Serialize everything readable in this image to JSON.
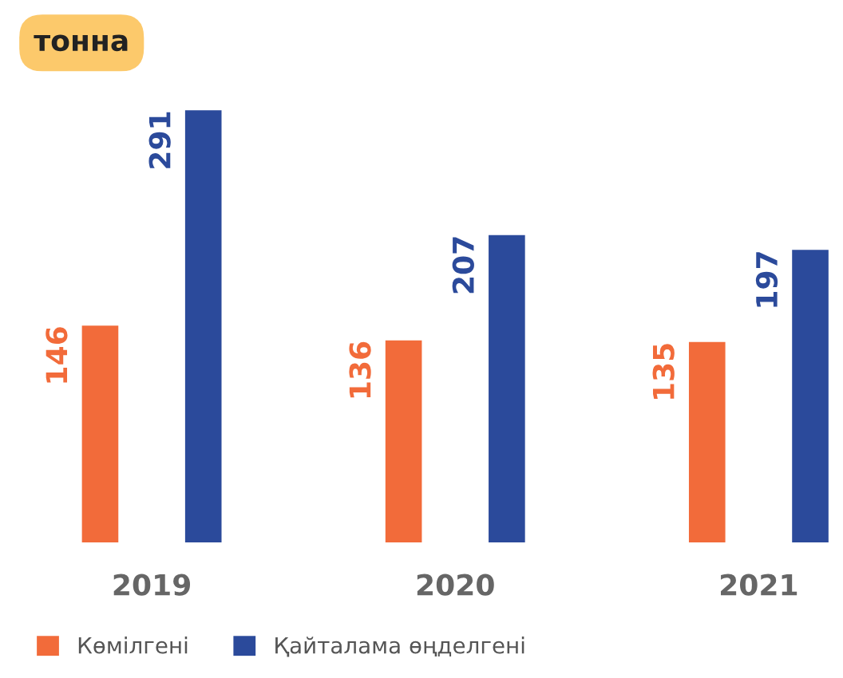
{
  "chart_data": {
    "type": "bar",
    "title": "тонна",
    "categories": [
      "2019",
      "2020",
      "2021"
    ],
    "series": [
      {
        "name": "Көмілгені",
        "color": "#f26b3a",
        "values": [
          146,
          136,
          135
        ]
      },
      {
        "name": "Қайталама өңделгені",
        "color": "#2b4a9b",
        "values": [
          291,
          207,
          197
        ]
      }
    ],
    "data_labels": true,
    "legend": "bottom left",
    "grid": false
  }
}
